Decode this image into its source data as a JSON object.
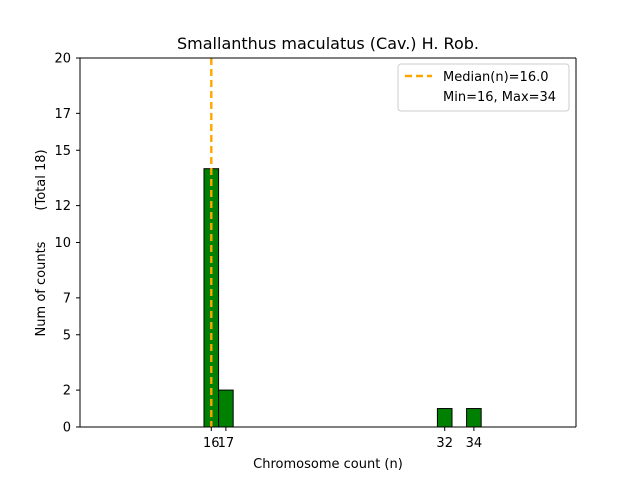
{
  "chart_data": {
    "type": "bar",
    "title": "Smallanthus maculatus (Cav.) H. Rob.",
    "xlabel": "Chromosome count (n)",
    "ylabel": "Num of counts",
    "ylabel_total": "(Total 18)",
    "xlim": [
      7,
      41
    ],
    "ylim": [
      0,
      20
    ],
    "x_ticks": [
      16,
      17,
      32,
      34
    ],
    "y_ticks": [
      0,
      2,
      5,
      7,
      10,
      12,
      15,
      17,
      20
    ],
    "bars": [
      {
        "x": 16,
        "count": 14
      },
      {
        "x": 17,
        "count": 2
      },
      {
        "x": 32,
        "count": 1
      },
      {
        "x": 34,
        "count": 1
      }
    ],
    "bar_color": "#008000",
    "median_line": {
      "x": 16.0,
      "color": "#FFA500"
    },
    "legend": {
      "placement": "top-right",
      "entries": [
        "Median(n)=16.0",
        "Min=16, Max=34"
      ]
    },
    "grid": false
  }
}
